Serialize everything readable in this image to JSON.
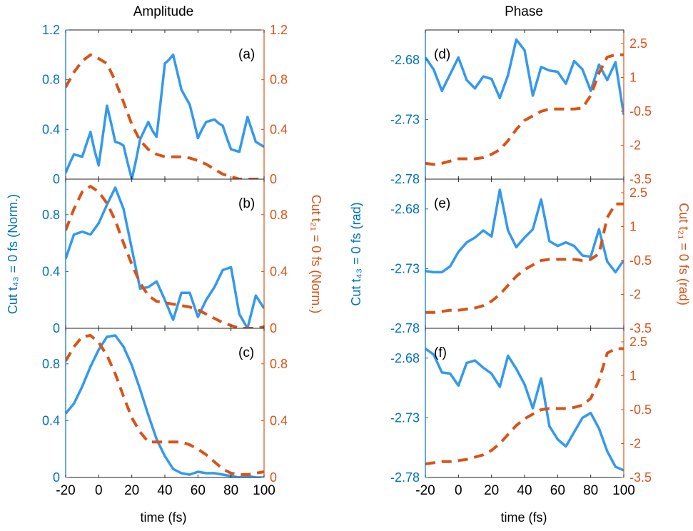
{
  "figure": {
    "col_titles": [
      "Amplitude",
      "Phase"
    ],
    "left_ylabel_amp": "Cut t₄₃ = 0 fs (Norm.)",
    "right_ylabel_amp": "Cut t₂₁ = 0 fs (Norm.)",
    "left_ylabel_phase": "Cut t₄₃ = 0 fs (rad)",
    "right_ylabel_phase": "Cut t₂₁ = 0 fs (rad)",
    "xlabel": "time (fs)",
    "colors": {
      "blue": "#3399EE",
      "orange": "#D95319",
      "blue_axis": "#0072BD",
      "orange_axis": "#D95319"
    }
  },
  "chart_data": [
    {
      "type": "line",
      "panel": "(a)",
      "xlim": [
        -20,
        100
      ],
      "ylim_left": [
        0,
        1.2
      ],
      "ylim_right": [
        0,
        1.2
      ],
      "yticks_left": [
        "0",
        "0.4",
        "0.8",
        "1.2"
      ],
      "yticks_right": [
        "0",
        "0.4",
        "0.8",
        "1.2"
      ],
      "series": [
        {
          "axis": "left",
          "style": "solid",
          "x": [
            -20,
            -17.5,
            -15,
            -12.5,
            -10,
            -7.5,
            -5,
            -2.5,
            0,
            2.5,
            5,
            7.5,
            10,
            12.5,
            15,
            17.5,
            20,
            22.5,
            25,
            27.5,
            30,
            32.5,
            35,
            37.5,
            40,
            42.5,
            45,
            47.5,
            50,
            52.5,
            55,
            57.5,
            60,
            62.5,
            65,
            67.5,
            70,
            72.5,
            75,
            77.5,
            80,
            82.5,
            85,
            87.5,
            90,
            92.5,
            95,
            97.5,
            100
          ],
          "y": [
            0.05,
            0.13,
            0.2,
            0.19,
            0.18,
            0.28,
            0.38,
            0.23,
            0.11,
            0.35,
            0.59,
            0.45,
            0.3,
            0.29,
            0.27,
            0.13,
            0,
            0.15,
            0.32,
            0.39,
            0.46,
            0.39,
            0.34,
            0.63,
            0.93,
            0.96,
            1.0,
            0.86,
            0.72,
            0.66,
            0.6,
            0.47,
            0.33,
            0.4,
            0.46,
            0.47,
            0.48,
            0.45,
            0.43,
            0.33,
            0.24,
            0.23,
            0.22,
            0.36,
            0.5,
            0.4,
            0.3,
            0.28,
            0.26
          ]
        },
        {
          "axis": "right",
          "style": "dashed",
          "x": [
            -20,
            -15,
            -10,
            -5,
            0,
            5,
            10,
            15,
            20,
            25,
            30,
            35,
            40,
            45,
            50,
            55,
            60,
            65,
            70,
            75,
            80,
            85,
            90,
            95,
            100
          ],
          "y": [
            0.74,
            0.86,
            0.95,
            1.0,
            0.97,
            0.93,
            0.79,
            0.62,
            0.44,
            0.31,
            0.24,
            0.2,
            0.18,
            0.18,
            0.18,
            0.17,
            0.15,
            0.12,
            0.08,
            0.04,
            0.02,
            0.0,
            0.0,
            0.0,
            0.0
          ]
        }
      ]
    },
    {
      "type": "line",
      "panel": "(b)",
      "xlim": [
        -20,
        100
      ],
      "ylim_left": [
        0,
        1.05
      ],
      "ylim_right": [
        0,
        1.05
      ],
      "yticks_left": [
        "0",
        "0.4",
        "0.8"
      ],
      "yticks_right": [
        "0",
        "0.4",
        "0.8"
      ],
      "series": [
        {
          "axis": "left",
          "style": "solid",
          "x": [
            -20,
            -15,
            -10,
            -5,
            0,
            5,
            10,
            15,
            20,
            25,
            30,
            35,
            40,
            45,
            50,
            55,
            60,
            65,
            70,
            75,
            80,
            85,
            90,
            95,
            100
          ],
          "y": [
            0.49,
            0.66,
            0.68,
            0.66,
            0.74,
            0.87,
            0.99,
            0.84,
            0.56,
            0.28,
            0.29,
            0.33,
            0.2,
            0.06,
            0.25,
            0.25,
            0.08,
            0.2,
            0.29,
            0.41,
            0.43,
            0.1,
            0.0,
            0.23,
            0.14
          ]
        },
        {
          "axis": "right",
          "style": "dashed",
          "x": [
            -20,
            -15,
            -10,
            -5,
            0,
            5,
            10,
            15,
            20,
            25,
            30,
            35,
            40,
            45,
            50,
            55,
            60,
            65,
            70,
            75,
            80,
            85,
            90,
            95,
            100
          ],
          "y": [
            0.69,
            0.84,
            0.96,
            1.0,
            0.96,
            0.88,
            0.76,
            0.6,
            0.45,
            0.32,
            0.23,
            0.19,
            0.18,
            0.17,
            0.16,
            0.15,
            0.13,
            0.1,
            0.07,
            0.04,
            0.02,
            0.0,
            0.0,
            0.0,
            0.01
          ]
        }
      ]
    },
    {
      "type": "line",
      "panel": "(c)",
      "xlim": [
        -20,
        100
      ],
      "ylim_left": [
        0,
        1.05
      ],
      "ylim_right": [
        0,
        1.05
      ],
      "yticks_left": [
        "0",
        "0.4",
        "0.8"
      ],
      "yticks_right": [
        "0",
        "0.4",
        "0.8"
      ],
      "series": [
        {
          "axis": "left",
          "style": "solid",
          "x": [
            -20,
            -15,
            -10,
            -5,
            0,
            5,
            10,
            15,
            20,
            25,
            30,
            35,
            40,
            45,
            50,
            55,
            60,
            65,
            70,
            75,
            80,
            85,
            90,
            95,
            100
          ],
          "y": [
            0.45,
            0.52,
            0.64,
            0.78,
            0.9,
            0.99,
            1.0,
            0.92,
            0.79,
            0.62,
            0.44,
            0.27,
            0.15,
            0.06,
            0.03,
            0.02,
            0.04,
            0.03,
            0.03,
            0.02,
            0.01,
            0.0,
            0.01,
            0.0,
            0.0
          ]
        },
        {
          "axis": "right",
          "style": "dashed",
          "x": [
            -20,
            -15,
            -10,
            -5,
            0,
            5,
            10,
            15,
            20,
            25,
            30,
            35,
            40,
            45,
            50,
            55,
            60,
            65,
            70,
            75,
            80,
            85,
            90,
            95,
            100
          ],
          "y": [
            0.82,
            0.92,
            0.99,
            1.0,
            0.95,
            0.86,
            0.73,
            0.57,
            0.42,
            0.32,
            0.25,
            0.25,
            0.25,
            0.25,
            0.25,
            0.23,
            0.2,
            0.16,
            0.11,
            0.06,
            0.03,
            0.02,
            0.02,
            0.03,
            0.04
          ]
        }
      ]
    },
    {
      "type": "line",
      "panel": "(d)",
      "xlim": [
        -20,
        100
      ],
      "ylim_left": [
        -2.78,
        -2.655
      ],
      "ylim_right": [
        -3.5,
        3.1
      ],
      "yticks_left": [
        "-2.78",
        "-2.73",
        "-2.68"
      ],
      "yticks_right": [
        "-3.5",
        "-2",
        "-0.5",
        "1",
        "2.5"
      ],
      "series": [
        {
          "axis": "left",
          "style": "solid",
          "x": [
            -20,
            -15,
            -10,
            -5,
            0,
            5,
            10,
            15,
            20,
            25,
            30,
            35,
            40,
            45,
            50,
            55,
            60,
            65,
            70,
            75,
            80,
            85,
            90,
            95,
            100
          ],
          "y": [
            -2.678,
            -2.688,
            -2.706,
            -2.692,
            -2.678,
            -2.697,
            -2.704,
            -2.694,
            -2.696,
            -2.712,
            -2.693,
            -2.663,
            -2.672,
            -2.71,
            -2.686,
            -2.689,
            -2.69,
            -2.7,
            -2.681,
            -2.688,
            -2.706,
            -2.684,
            -2.697,
            -2.682,
            -2.726
          ]
        },
        {
          "axis": "right",
          "style": "dashed",
          "x": [
            -20,
            -15,
            -10,
            -5,
            0,
            5,
            10,
            15,
            20,
            25,
            30,
            35,
            40,
            45,
            50,
            55,
            60,
            65,
            70,
            75,
            80,
            85,
            90,
            95,
            100
          ],
          "y": [
            -2.8,
            -2.85,
            -2.8,
            -2.7,
            -2.6,
            -2.6,
            -2.6,
            -2.55,
            -2.4,
            -2.2,
            -1.8,
            -1.3,
            -0.9,
            -0.7,
            -0.5,
            -0.4,
            -0.4,
            -0.4,
            -0.4,
            -0.35,
            0.2,
            1.2,
            1.9,
            2.0,
            2.0
          ]
        }
      ]
    },
    {
      "type": "line",
      "panel": "(e)",
      "xlim": [
        -20,
        100
      ],
      "ylim_left": [
        -2.78,
        -2.655
      ],
      "ylim_right": [
        -3.5,
        3.1
      ],
      "yticks_left": [
        "-2.78",
        "-2.73",
        "-2.68"
      ],
      "yticks_right": [
        "-3.5",
        "-2",
        "-0.5",
        "1",
        "2.5"
      ],
      "series": [
        {
          "axis": "left",
          "style": "solid",
          "x": [
            -20,
            -15,
            -10,
            -5,
            0,
            5,
            10,
            15,
            20,
            25,
            30,
            35,
            40,
            45,
            50,
            55,
            60,
            65,
            70,
            75,
            80,
            85,
            90,
            95,
            100
          ],
          "y": [
            -2.732,
            -2.733,
            -2.733,
            -2.728,
            -2.716,
            -2.708,
            -2.704,
            -2.698,
            -2.703,
            -2.664,
            -2.698,
            -2.712,
            -2.704,
            -2.697,
            -2.672,
            -2.707,
            -2.711,
            -2.708,
            -2.711,
            -2.719,
            -2.72,
            -2.697,
            -2.724,
            -2.733,
            -2.723
          ]
        },
        {
          "axis": "right",
          "style": "dashed",
          "x": [
            -20,
            -15,
            -10,
            -5,
            0,
            5,
            10,
            15,
            20,
            25,
            30,
            35,
            40,
            45,
            50,
            55,
            60,
            65,
            70,
            75,
            80,
            85,
            90,
            95,
            100
          ],
          "y": [
            -2.8,
            -2.8,
            -2.75,
            -2.7,
            -2.7,
            -2.65,
            -2.6,
            -2.5,
            -2.3,
            -2.0,
            -1.6,
            -1.2,
            -0.9,
            -0.7,
            -0.5,
            -0.45,
            -0.45,
            -0.45,
            -0.45,
            -0.5,
            -0.45,
            -0.2,
            1.4,
            2.0,
            2.0
          ]
        }
      ]
    },
    {
      "type": "line",
      "panel": "(f)",
      "xlim": [
        -20,
        100
      ],
      "ylim_left": [
        -2.78,
        -2.655
      ],
      "ylim_right": [
        -3.5,
        3.1
      ],
      "yticks_left": [
        "-2.78",
        "-2.73",
        "-2.68"
      ],
      "yticks_right": [
        "-3.5",
        "-2",
        "-0.5",
        "1",
        "2.5"
      ],
      "series": [
        {
          "axis": "left",
          "style": "solid",
          "x": [
            -20,
            -15,
            -10,
            -5,
            0,
            5,
            10,
            15,
            20,
            25,
            30,
            35,
            40,
            45,
            50,
            55,
            60,
            65,
            70,
            75,
            80,
            85,
            90,
            95,
            100
          ],
          "y": [
            -2.672,
            -2.677,
            -2.692,
            -2.693,
            -2.703,
            -2.684,
            -2.682,
            -2.688,
            -2.693,
            -2.704,
            -2.678,
            -2.689,
            -2.702,
            -2.722,
            -2.697,
            -2.737,
            -2.748,
            -2.754,
            -2.742,
            -2.73,
            -2.726,
            -2.739,
            -2.758,
            -2.771,
            -2.774
          ]
        },
        {
          "axis": "right",
          "style": "dashed",
          "x": [
            -20,
            -15,
            -10,
            -5,
            0,
            5,
            10,
            15,
            20,
            25,
            30,
            35,
            40,
            45,
            50,
            55,
            60,
            65,
            70,
            75,
            80,
            85,
            90,
            95,
            100
          ],
          "y": [
            -2.9,
            -2.85,
            -2.8,
            -2.8,
            -2.75,
            -2.7,
            -2.6,
            -2.5,
            -2.3,
            -2.0,
            -1.6,
            -1.2,
            -0.9,
            -0.7,
            -0.5,
            -0.45,
            -0.45,
            -0.45,
            -0.4,
            -0.3,
            0.0,
            0.8,
            2.0,
            2.2,
            2.2
          ]
        }
      ]
    }
  ],
  "xticks": [
    "-20",
    "0",
    "20",
    "40",
    "60",
    "80",
    "100"
  ]
}
